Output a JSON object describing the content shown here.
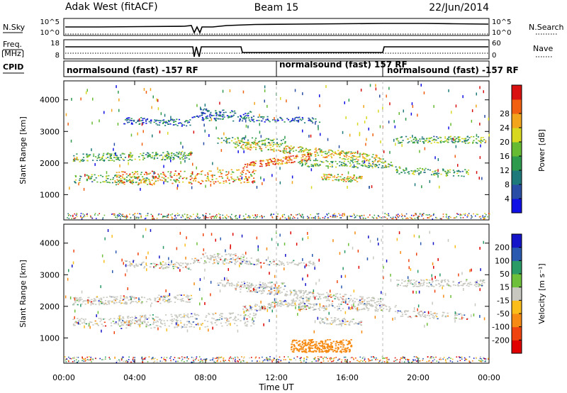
{
  "header": {
    "station": "Adak West (fitACF)",
    "beam": "Beam 15",
    "date": "22/Jun/2014"
  },
  "panels": {
    "nsky": {
      "label": "N.Sky",
      "tick_top": "10^5",
      "tick_bottom": "10^0",
      "right_top": "10^5",
      "right_bottom": "10^0",
      "right_label": "N.Search"
    },
    "freq": {
      "label_line1": "Freq.",
      "label_line2": "[MHz]",
      "tick_top": "18",
      "tick_bottom": "8",
      "right_top": "60",
      "right_bottom": "0",
      "right_label": "Nave"
    },
    "cpid": {
      "label": "CPID",
      "segments": [
        "normalsound (fast) -157 RF",
        "normalsound (fast) 157 RF",
        "normalsound (fast) -157 RF"
      ]
    }
  },
  "xaxis": {
    "label": "Time UT",
    "ticks": [
      "00:00",
      "04:00",
      "08:00",
      "12:00",
      "16:00",
      "20:00",
      "00:00"
    ]
  },
  "chart_data": [
    {
      "type": "heatmap",
      "title": "",
      "ylabel": "Slant Range [km]",
      "ylim": [
        200,
        4600
      ],
      "yticks": [
        "1000",
        "2000",
        "3000",
        "4000"
      ],
      "colorbar": {
        "label": "Power [dB]",
        "ticks": [
          "4",
          "8",
          "12",
          "16",
          "20",
          "24",
          "28"
        ],
        "colors": [
          "#1010e6",
          "#2a4ea6",
          "#1e7a7a",
          "#2e9a4e",
          "#66bb33",
          "#d8d820",
          "#f2a41c",
          "#f06010",
          "#d81010"
        ]
      }
    },
    {
      "type": "heatmap",
      "title": "",
      "ylabel": "Slant Range [km]",
      "ylim": [
        200,
        4600
      ],
      "yticks": [
        "1000",
        "2000",
        "3000",
        "4000"
      ],
      "colorbar": {
        "label": "Velocity [m s⁻¹]",
        "ticks": [
          "-200",
          "-100",
          "-50",
          "-15",
          "15",
          "50",
          "100",
          "200"
        ],
        "colors": [
          "#e00000",
          "#f04410",
          "#f68a12",
          "#fbbd1a",
          "#c8c8c0",
          "#6ec03a",
          "#2a9a66",
          "#2a5ab0",
          "#1414c8"
        ]
      }
    }
  ]
}
